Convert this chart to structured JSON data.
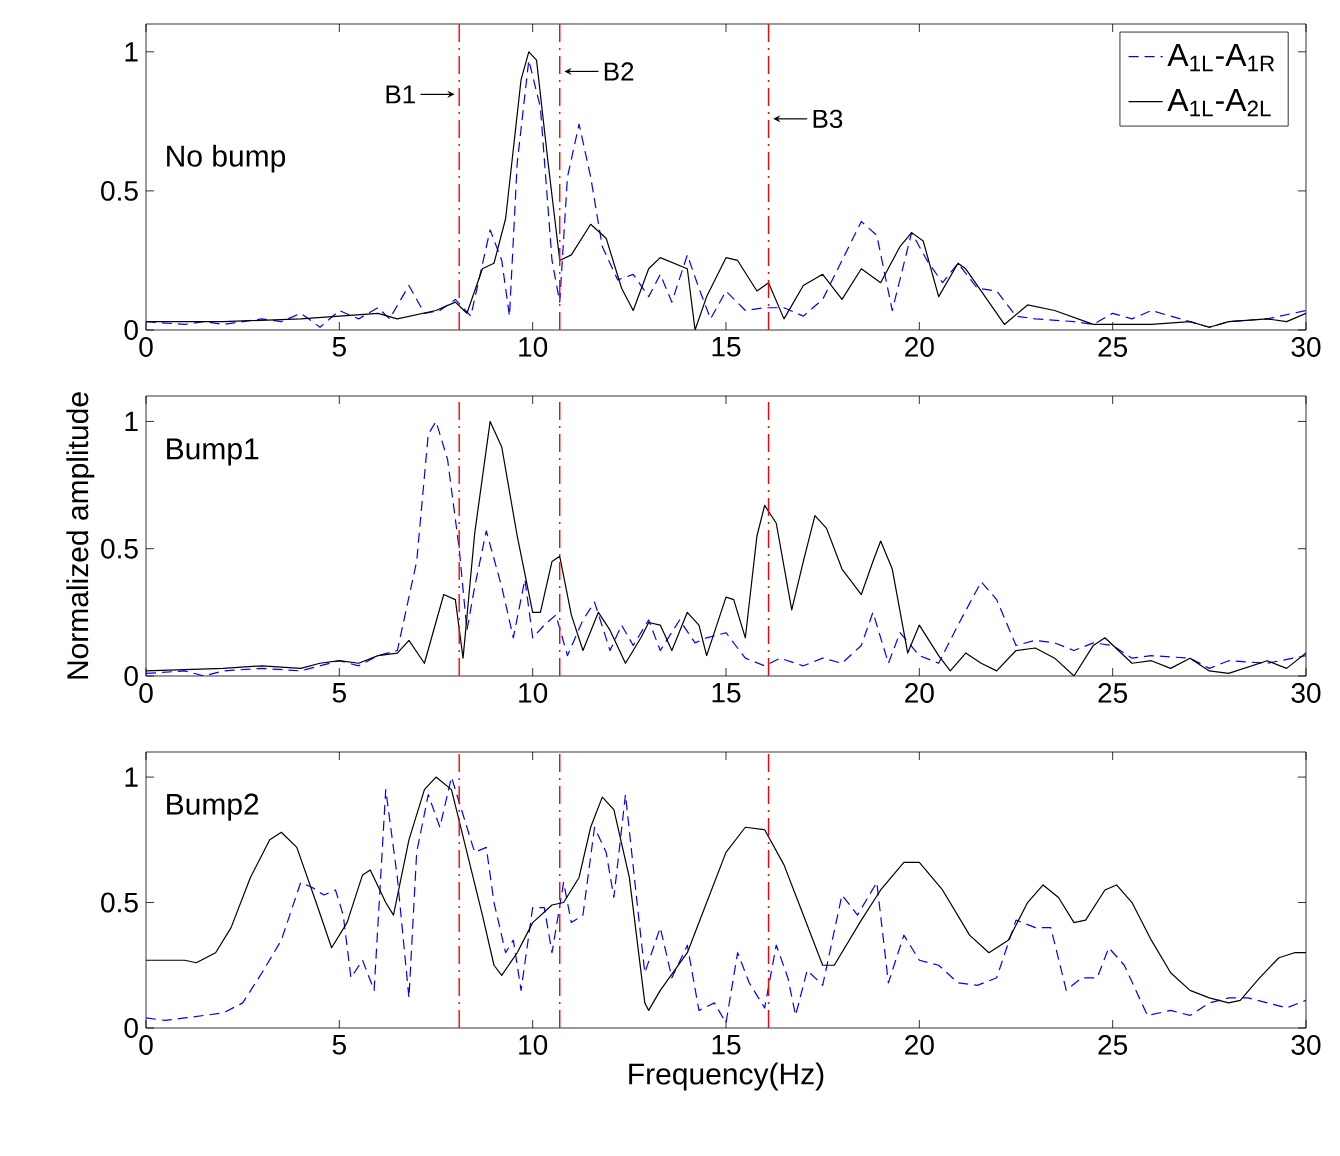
{
  "chart_data": [
    {
      "type": "line",
      "title": "No bump",
      "xlim": [
        0,
        30
      ],
      "ylim": [
        0,
        1.1
      ],
      "xticks": [
        0,
        5,
        10,
        15,
        20,
        25,
        30
      ],
      "yticks": [
        0,
        0.5,
        1
      ],
      "legend": "top right",
      "series": [
        {
          "name": "A$_{1L}$-A$_{1R}$",
          "color": "#0000ff",
          "line_style": "dashed",
          "x": [
            0,
            1,
            1.5,
            2,
            3,
            3.5,
            4,
            4.5,
            5,
            5.5,
            6,
            6.3,
            6.8,
            7.2,
            7.6,
            8,
            8.4,
            8.9,
            9.2,
            9.4,
            9.6,
            9.9,
            10.2,
            10.5,
            10.7,
            10.9,
            11.2,
            11.5,
            11.8,
            12.2,
            12.6,
            13,
            13.3,
            13.6,
            14,
            14.3,
            14.6,
            15,
            15.5,
            16,
            16.5,
            17,
            17.5,
            18,
            18.5,
            18.9,
            19.3,
            19.8,
            20.2,
            20.6,
            21,
            21.5,
            22,
            22.5,
            23,
            24,
            24.5,
            25,
            25.5,
            26,
            26.5,
            27,
            27.5,
            28,
            29,
            30
          ],
          "values": [
            0.03,
            0.02,
            0.03,
            0.02,
            0.04,
            0.03,
            0.06,
            0.01,
            0.07,
            0.04,
            0.08,
            0.04,
            0.16,
            0.06,
            0.07,
            0.11,
            0.05,
            0.36,
            0.25,
            0.05,
            0.6,
            0.97,
            0.8,
            0.25,
            0.1,
            0.55,
            0.74,
            0.55,
            0.3,
            0.18,
            0.2,
            0.12,
            0.2,
            0.1,
            0.27,
            0.15,
            0.04,
            0.14,
            0.07,
            0.08,
            0.08,
            0.05,
            0.11,
            0.25,
            0.39,
            0.34,
            0.07,
            0.35,
            0.25,
            0.17,
            0.24,
            0.15,
            0.14,
            0.05,
            0.04,
            0.03,
            0.02,
            0.06,
            0.04,
            0.07,
            0.05,
            0.03,
            0.01,
            0.03,
            0.04,
            0.07
          ]
        },
        {
          "name": "A$_{1L}$-A$_{2L}$",
          "color": "#000000",
          "line_style": "solid",
          "x": [
            0,
            2,
            4,
            5,
            6,
            6.5,
            7.5,
            8,
            8.3,
            8.7,
            9,
            9.3,
            9.7,
            9.9,
            10.1,
            10.4,
            10.7,
            11,
            11.5,
            11.9,
            12.3,
            12.6,
            13,
            13.3,
            14,
            14.2,
            14.5,
            15,
            15.3,
            15.8,
            16.1,
            16.5,
            17,
            17.5,
            18,
            18.5,
            19,
            19.5,
            19.8,
            20.1,
            20.5,
            21,
            21.2,
            21.8,
            22.2,
            22.8,
            23.5,
            24.5,
            25,
            26,
            27,
            27.5,
            28,
            29,
            29.5,
            30
          ],
          "values": [
            0.03,
            0.03,
            0.04,
            0.05,
            0.06,
            0.04,
            0.07,
            0.1,
            0.06,
            0.22,
            0.24,
            0.4,
            0.9,
            1.0,
            0.97,
            0.6,
            0.25,
            0.27,
            0.38,
            0.33,
            0.15,
            0.07,
            0.22,
            0.26,
            0.22,
            0.0,
            0.12,
            0.26,
            0.25,
            0.14,
            0.17,
            0.04,
            0.16,
            0.2,
            0.11,
            0.22,
            0.17,
            0.3,
            0.35,
            0.32,
            0.12,
            0.24,
            0.22,
            0.1,
            0.02,
            0.09,
            0.07,
            0.02,
            0.02,
            0.02,
            0.03,
            0.01,
            0.03,
            0.04,
            0.03,
            0.06
          ]
        }
      ],
      "ref_lines": [
        {
          "axis": "x",
          "value": 8.1,
          "label": "B1",
          "color": "#ff0000",
          "line_style": "dashed"
        },
        {
          "axis": "x",
          "value": 10.7,
          "label": "B2",
          "color": "#ff0000",
          "line_style": "dashed"
        },
        {
          "axis": "x",
          "value": 16.1,
          "label": "B3",
          "color": "#ff0000",
          "line_style": "dashed"
        }
      ]
    },
    {
      "type": "line",
      "title": "Bump1",
      "ylabel": "Normalized amplitude",
      "xlim": [
        0,
        30
      ],
      "ylim": [
        0,
        1.1
      ],
      "xticks": [
        0,
        5,
        10,
        15,
        20,
        25,
        30
      ],
      "yticks": [
        0,
        0.5,
        1
      ],
      "series": [
        {
          "color": "#0000ff",
          "line_style": "dashed",
          "x": [
            0,
            1,
            1.5,
            2,
            3,
            4,
            5,
            5.5,
            6,
            6.5,
            7,
            7.3,
            7.5,
            7.8,
            8.1,
            8.3,
            8.5,
            8.8,
            9.2,
            9.5,
            9.8,
            10,
            10.3,
            10.6,
            10.9,
            11.3,
            11.6,
            12,
            12.3,
            12.6,
            13,
            13.3,
            13.8,
            14.2,
            14.5,
            15,
            15.5,
            16,
            16.4,
            17,
            17.5,
            18,
            18.5,
            18.8,
            19.2,
            19.5,
            20,
            20.5,
            21,
            21.6,
            22,
            22.5,
            23,
            23.5,
            24,
            24.5,
            25,
            25.5,
            26,
            27,
            27.5,
            28,
            29,
            30
          ],
          "values": [
            0.01,
            0.02,
            0.0,
            0.02,
            0.03,
            0.02,
            0.06,
            0.04,
            0.08,
            0.1,
            0.45,
            0.95,
            1.0,
            0.85,
            0.5,
            0.18,
            0.35,
            0.57,
            0.35,
            0.15,
            0.38,
            0.15,
            0.2,
            0.24,
            0.08,
            0.22,
            0.29,
            0.1,
            0.2,
            0.12,
            0.22,
            0.1,
            0.22,
            0.13,
            0.15,
            0.17,
            0.07,
            0.04,
            0.07,
            0.04,
            0.07,
            0.05,
            0.12,
            0.25,
            0.05,
            0.17,
            0.08,
            0.05,
            0.2,
            0.37,
            0.3,
            0.12,
            0.14,
            0.13,
            0.1,
            0.13,
            0.12,
            0.07,
            0.08,
            0.07,
            0.03,
            0.06,
            0.05,
            0.08
          ]
        },
        {
          "color": "#000000",
          "line_style": "solid",
          "x": [
            0,
            2,
            3,
            4,
            4.5,
            5,
            5.5,
            6,
            6.5,
            6.8,
            7.2,
            7.7,
            8,
            8.2,
            8.5,
            8.9,
            9.2,
            9.6,
            10,
            10.2,
            10.5,
            10.7,
            11,
            11.3,
            11.7,
            12,
            12.4,
            12.8,
            13,
            13.3,
            13.6,
            14,
            14.3,
            14.5,
            15,
            15.2,
            15.5,
            15.8,
            16,
            16.3,
            16.7,
            17,
            17.3,
            17.6,
            18,
            18.5,
            18.8,
            19,
            19.3,
            19.7,
            20,
            20.5,
            20.8,
            21.2,
            21.6,
            22,
            22.5,
            23,
            23.5,
            24,
            24.5,
            24.8,
            25.5,
            26,
            26.5,
            27,
            27.5,
            28,
            29,
            29.5,
            30
          ],
          "values": [
            0.02,
            0.03,
            0.04,
            0.03,
            0.05,
            0.06,
            0.05,
            0.08,
            0.09,
            0.14,
            0.05,
            0.32,
            0.3,
            0.07,
            0.56,
            1.0,
            0.9,
            0.55,
            0.25,
            0.25,
            0.45,
            0.47,
            0.24,
            0.1,
            0.25,
            0.18,
            0.05,
            0.15,
            0.21,
            0.2,
            0.1,
            0.25,
            0.2,
            0.08,
            0.31,
            0.3,
            0.15,
            0.55,
            0.67,
            0.6,
            0.26,
            0.45,
            0.63,
            0.58,
            0.42,
            0.32,
            0.45,
            0.53,
            0.42,
            0.09,
            0.2,
            0.08,
            0.02,
            0.09,
            0.05,
            0.02,
            0.1,
            0.11,
            0.07,
            0.0,
            0.12,
            0.15,
            0.05,
            0.06,
            0.03,
            0.07,
            0.02,
            0.01,
            0.06,
            0.03,
            0.09
          ]
        }
      ],
      "ref_lines": [
        {
          "axis": "x",
          "value": 8.1,
          "color": "#ff0000",
          "line_style": "dashed"
        },
        {
          "axis": "x",
          "value": 10.7,
          "color": "#ff0000",
          "line_style": "dashed"
        },
        {
          "axis": "x",
          "value": 16.1,
          "color": "#ff0000",
          "line_style": "dashed"
        }
      ]
    },
    {
      "type": "line",
      "title": "Bump2",
      "xlabel": "Frequency(Hz)",
      "xlim": [
        0,
        30
      ],
      "ylim": [
        0,
        1.1
      ],
      "xticks": [
        0,
        5,
        10,
        15,
        20,
        25,
        30
      ],
      "yticks": [
        0,
        0.5,
        1
      ],
      "series": [
        {
          "color": "#0000ff",
          "line_style": "dashed",
          "x": [
            0,
            0.5,
            1,
            2,
            2.5,
            3,
            3.5,
            4,
            4.3,
            4.6,
            4.9,
            5.1,
            5.3,
            5.6,
            5.9,
            6.2,
            6.5,
            6.8,
            7,
            7.3,
            7.6,
            7.9,
            8.2,
            8.5,
            8.8,
            9,
            9.3,
            9.5,
            9.7,
            10,
            10.3,
            10.5,
            10.8,
            11,
            11.3,
            11.6,
            11.9,
            12.1,
            12.4,
            12.7,
            12.9,
            13.3,
            13.6,
            14,
            14.3,
            14.7,
            15,
            15.3,
            15.6,
            16,
            16.3,
            16.6,
            16.8,
            17.1,
            17.5,
            18,
            18.4,
            18.9,
            19.2,
            19.6,
            20,
            20.5,
            21,
            21.5,
            22,
            22.5,
            23,
            23.4,
            23.8,
            24.2,
            24.6,
            24.9,
            25.3,
            25.9,
            26.5,
            27,
            27.5,
            28,
            28.5,
            29,
            29.5,
            30
          ],
          "values": [
            0.04,
            0.03,
            0.04,
            0.06,
            0.1,
            0.22,
            0.35,
            0.58,
            0.56,
            0.53,
            0.55,
            0.45,
            0.2,
            0.27,
            0.15,
            0.95,
            0.6,
            0.12,
            0.7,
            0.93,
            0.8,
            1.0,
            0.85,
            0.7,
            0.72,
            0.5,
            0.3,
            0.35,
            0.15,
            0.48,
            0.48,
            0.3,
            0.58,
            0.42,
            0.45,
            0.8,
            0.7,
            0.52,
            0.93,
            0.5,
            0.22,
            0.4,
            0.2,
            0.33,
            0.07,
            0.1,
            0.02,
            0.3,
            0.18,
            0.08,
            0.33,
            0.2,
            0.05,
            0.23,
            0.17,
            0.53,
            0.45,
            0.58,
            0.18,
            0.37,
            0.27,
            0.25,
            0.18,
            0.17,
            0.2,
            0.43,
            0.4,
            0.4,
            0.15,
            0.2,
            0.2,
            0.32,
            0.25,
            0.05,
            0.07,
            0.05,
            0.1,
            0.12,
            0.12,
            0.1,
            0.08,
            0.11
          ]
        },
        {
          "color": "#000000",
          "line_style": "solid",
          "x": [
            0,
            1,
            1.3,
            1.8,
            2.2,
            2.7,
            3.2,
            3.5,
            3.9,
            4.4,
            4.8,
            5.2,
            5.6,
            5.8,
            6.2,
            6.4,
            6.8,
            7.2,
            7.5,
            7.9,
            8.3,
            8.7,
            9,
            9.2,
            9.6,
            10,
            10.5,
            10.8,
            11.2,
            11.5,
            11.8,
            12.1,
            12.5,
            12.9,
            13,
            13.3,
            14,
            14.5,
            15,
            15.5,
            16,
            16.5,
            17,
            17.5,
            17.8,
            18.5,
            19,
            19.6,
            20,
            20.6,
            21.3,
            21.8,
            22.3,
            22.8,
            23.2,
            23.6,
            24,
            24.3,
            24.8,
            25.1,
            25.5,
            26,
            26.5,
            27,
            27.5,
            28,
            28.3,
            28.8,
            29.3,
            29.7,
            30
          ],
          "values": [
            0.27,
            0.27,
            0.26,
            0.3,
            0.4,
            0.6,
            0.75,
            0.78,
            0.72,
            0.5,
            0.32,
            0.42,
            0.61,
            0.63,
            0.5,
            0.45,
            0.75,
            0.95,
            1.0,
            0.95,
            0.7,
            0.45,
            0.25,
            0.21,
            0.3,
            0.42,
            0.49,
            0.5,
            0.6,
            0.8,
            0.92,
            0.87,
            0.6,
            0.1,
            0.07,
            0.15,
            0.3,
            0.5,
            0.7,
            0.8,
            0.79,
            0.65,
            0.45,
            0.25,
            0.25,
            0.43,
            0.55,
            0.66,
            0.66,
            0.55,
            0.37,
            0.3,
            0.35,
            0.5,
            0.57,
            0.52,
            0.42,
            0.43,
            0.55,
            0.57,
            0.5,
            0.35,
            0.22,
            0.15,
            0.12,
            0.1,
            0.11,
            0.2,
            0.28,
            0.3,
            0.3
          ]
        }
      ],
      "ref_lines": [
        {
          "axis": "x",
          "value": 8.1,
          "color": "#ff0000",
          "line_style": "dashed"
        },
        {
          "axis": "x",
          "value": 10.7,
          "color": "#ff0000",
          "line_style": "dashed"
        },
        {
          "axis": "x",
          "value": 16.1,
          "color": "#ff0000",
          "line_style": "dashed"
        }
      ]
    }
  ]
}
